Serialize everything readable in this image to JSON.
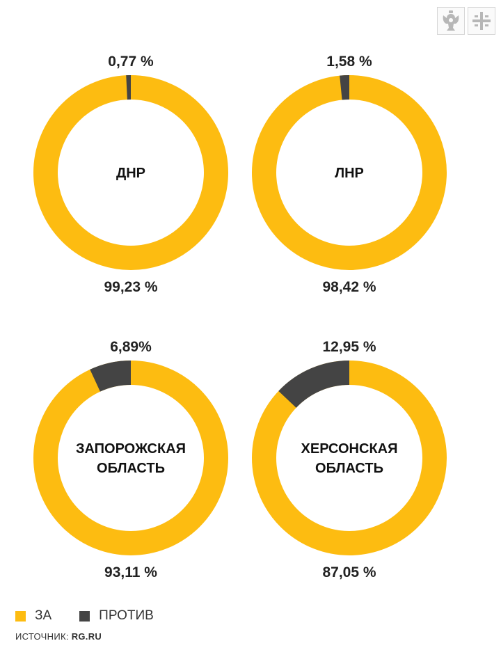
{
  "chart_data": {
    "type": "donut",
    "colors": {
      "for": "#FDBC11",
      "against": "#444444"
    },
    "legend": [
      {
        "key": "for",
        "label": "ЗА",
        "color": "#FDBC11"
      },
      {
        "key": "against",
        "label": "ПРОТИВ",
        "color": "#444444"
      }
    ],
    "charts": [
      {
        "center_lines": [
          "ДНР"
        ],
        "against": 0.77,
        "against_label": "0,77 %",
        "for": 99.23,
        "for_label": "99,23 %"
      },
      {
        "center_lines": [
          "ЛНР"
        ],
        "against": 1.58,
        "against_label": "1,58 %",
        "for": 98.42,
        "for_label": "98,42 %"
      },
      {
        "center_lines": [
          "ЗАПОРОЖСКАЯ",
          "ОБЛАСТЬ"
        ],
        "against": 6.89,
        "against_label": "6,89%",
        "for": 93.11,
        "for_label": "93,11 %"
      },
      {
        "center_lines": [
          "ХЕРСОНСКАЯ",
          "ОБЛАСТЬ"
        ],
        "against": 12.95,
        "against_label": "12,95 %",
        "for": 87.05,
        "for_label": "87,05 %"
      }
    ]
  },
  "source": {
    "prefix": "ИСТОЧНИК:",
    "name": "RG.RU"
  },
  "logos": [
    "double-headed-eagle-icon",
    "grid-cross-icon"
  ]
}
